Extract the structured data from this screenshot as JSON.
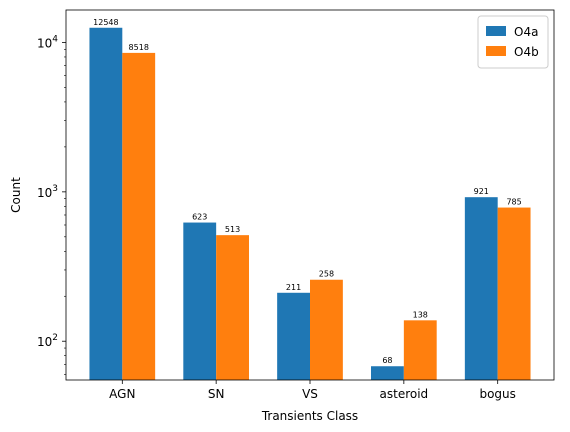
{
  "chart_data": {
    "type": "bar",
    "title": "",
    "xlabel": "Transients Class",
    "ylabel": "Count",
    "yscale": "log",
    "ylim": [
      55,
      16500
    ],
    "categories": [
      "AGN",
      "SN",
      "VS",
      "asteroid",
      "bogus"
    ],
    "series": [
      {
        "name": "O4a",
        "color": "#1f77b4",
        "values": [
          12548,
          623,
          211,
          68,
          921
        ]
      },
      {
        "name": "O4b",
        "color": "#ff7f0e",
        "values": [
          8518,
          513,
          258,
          138,
          785
        ]
      }
    ],
    "y_ticks": [
      {
        "value": 100,
        "base": "10",
        "exp": "2"
      },
      {
        "value": 1000,
        "base": "10",
        "exp": "3"
      },
      {
        "value": 10000,
        "base": "10",
        "exp": "4"
      }
    ],
    "legend_position": "top-right",
    "grid": false
  }
}
